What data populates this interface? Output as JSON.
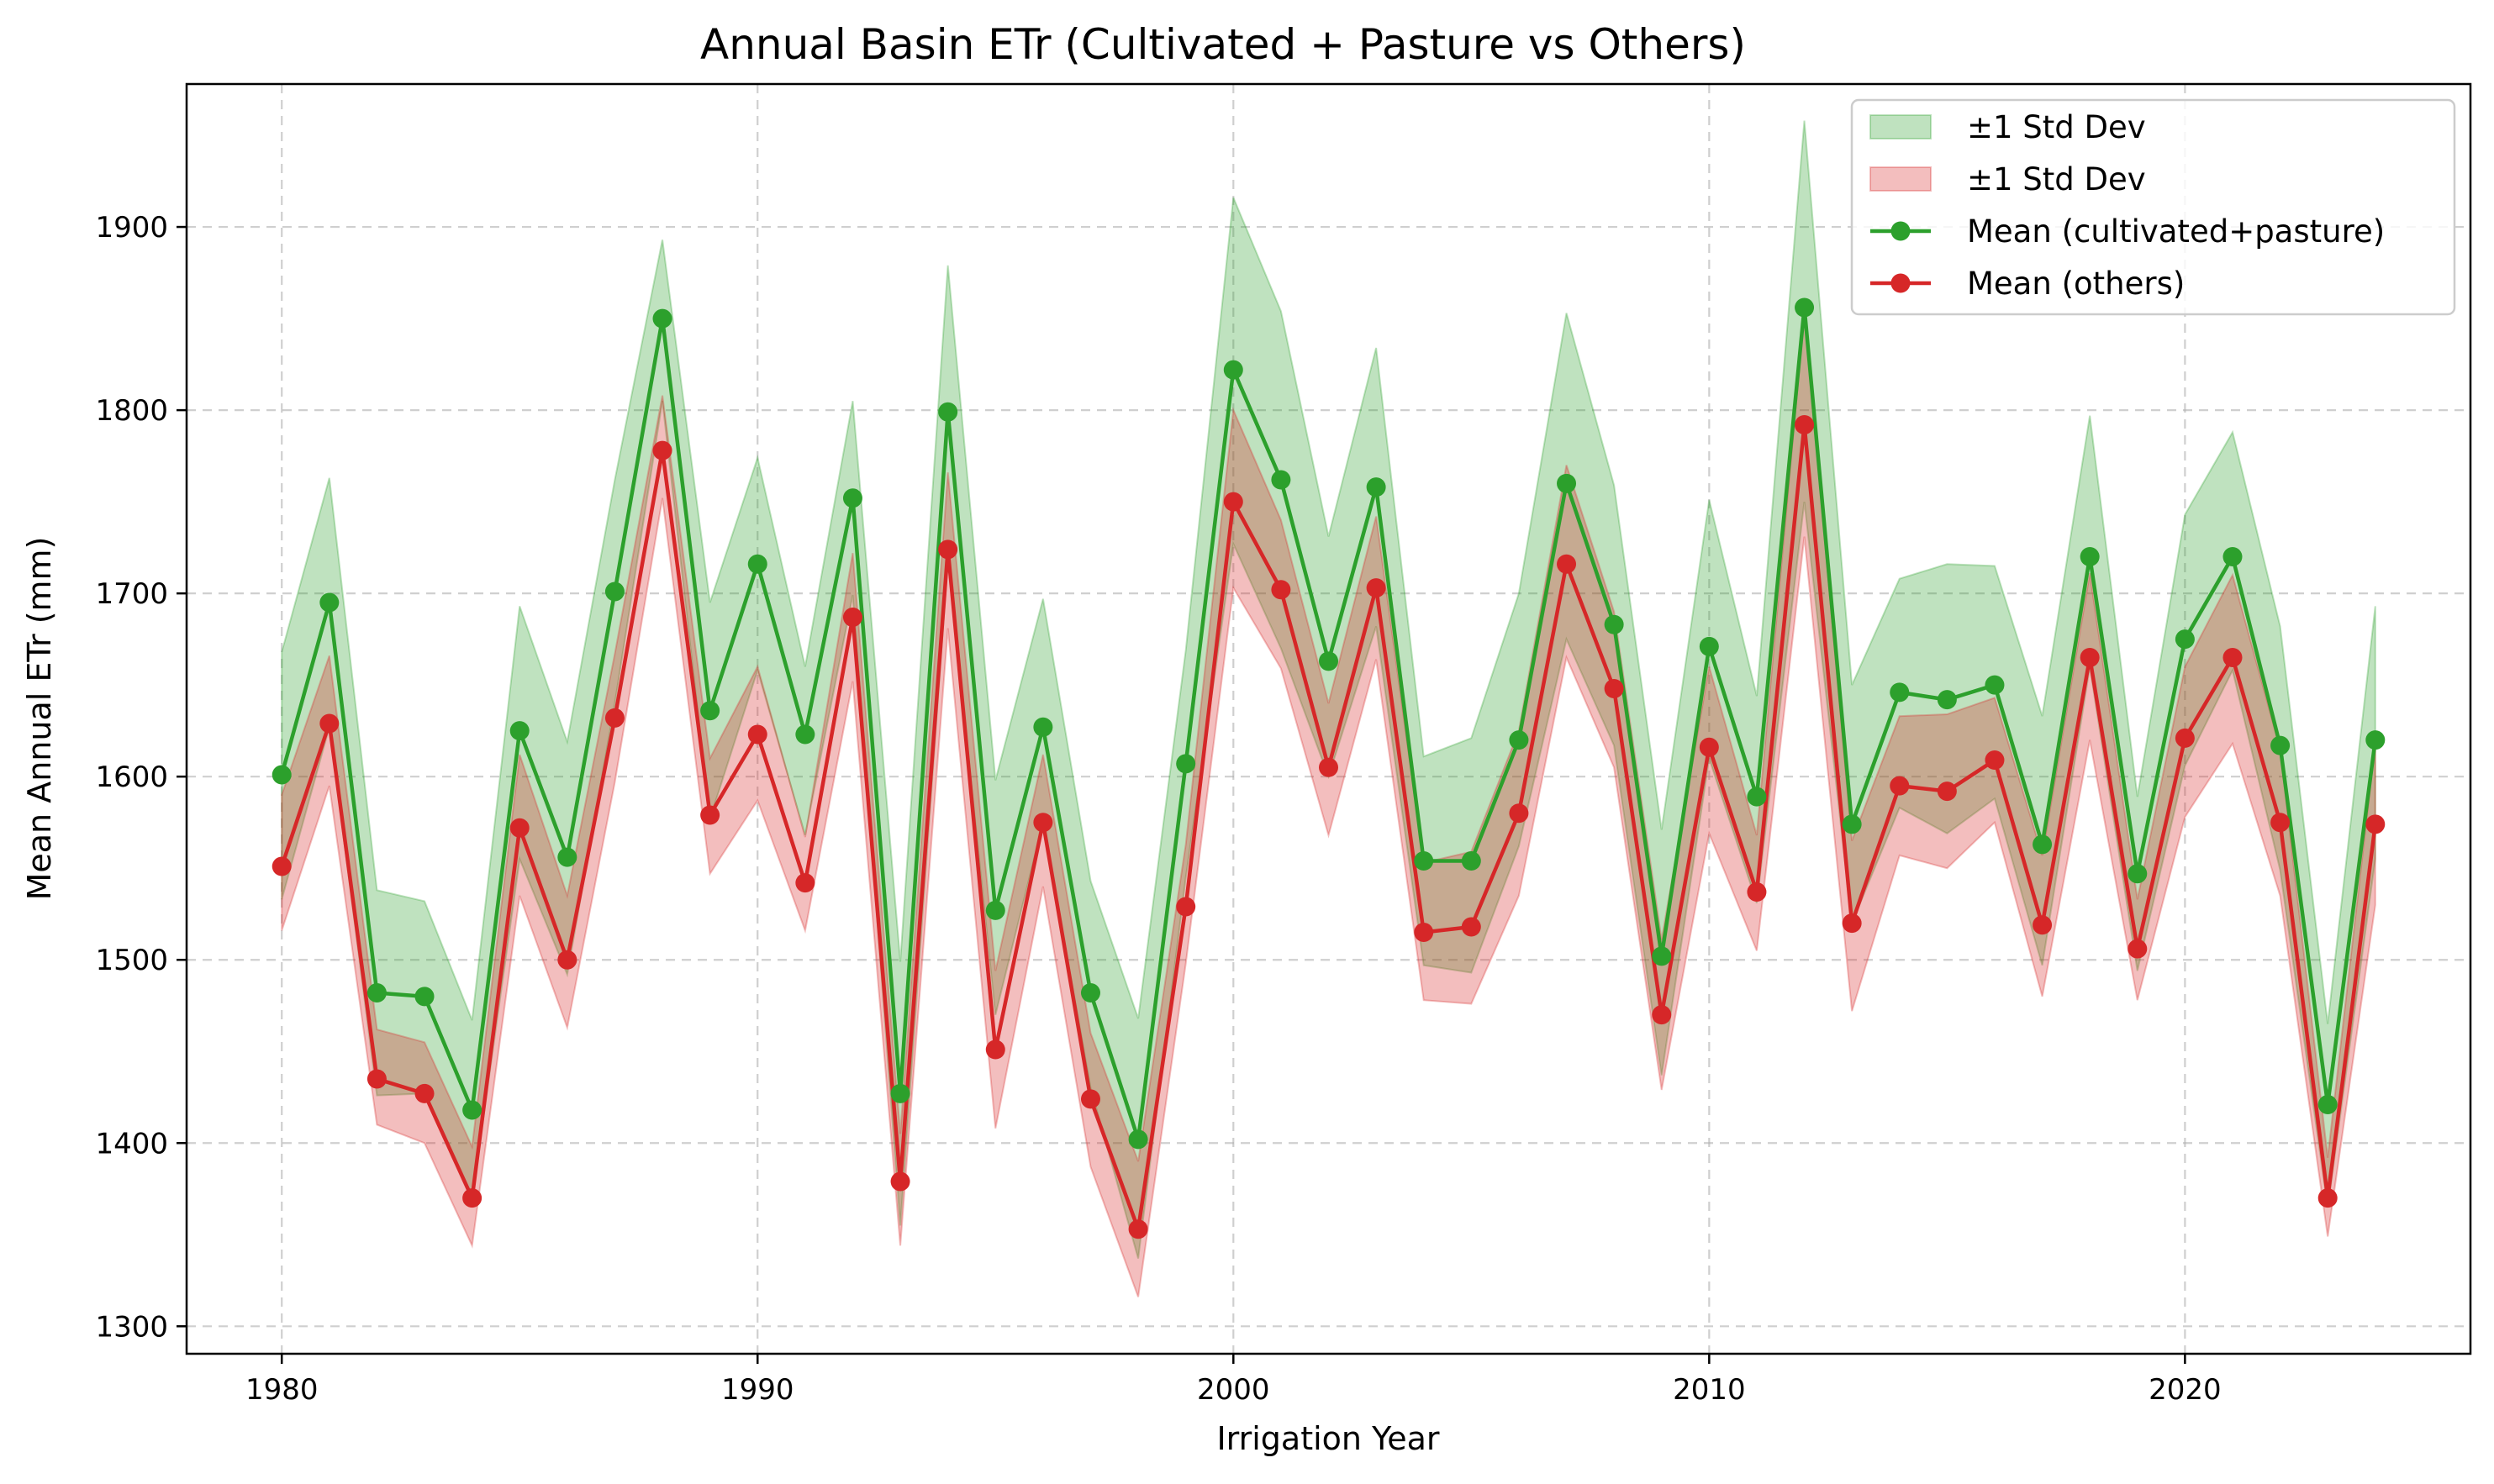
{
  "chart_data": {
    "type": "line",
    "title": "Annual Basin ETr (Cultivated + Pasture vs Others)",
    "xlabel": "Irrigation Year",
    "ylabel": "Mean Annual ETr (mm)",
    "xlim": [
      1978,
      2026
    ],
    "ylim": [
      1285,
      1978
    ],
    "xticks": [
      1980,
      1990,
      2000,
      2010,
      2020
    ],
    "yticks": [
      1300,
      1400,
      1500,
      1600,
      1700,
      1800,
      1900
    ],
    "grid": true,
    "legend_position": "top-right",
    "x": [
      1980,
      1981,
      1982,
      1983,
      1984,
      1985,
      1986,
      1987,
      1988,
      1989,
      1990,
      1991,
      1992,
      1993,
      1994,
      1995,
      1996,
      1997,
      1998,
      1999,
      2000,
      2001,
      2002,
      2003,
      2004,
      2005,
      2006,
      2007,
      2008,
      2009,
      2010,
      2011,
      2012,
      2013,
      2014,
      2015,
      2016,
      2017,
      2018,
      2019,
      2020,
      2021,
      2022,
      2023,
      2024
    ],
    "series": [
      {
        "name": "Mean (cultivated+pasture)",
        "band_name": "±1 Std Dev",
        "color": "#2ca02c",
        "band_color": "#2ca02c",
        "values": [
          1601,
          1695,
          1482,
          1480,
          1418,
          1625,
          1556,
          1701,
          1850,
          1636,
          1716,
          1623,
          1752,
          1427,
          1799,
          1527,
          1627,
          1482,
          1402,
          1607,
          1822,
          1762,
          1663,
          1758,
          1554,
          1554,
          1620,
          1760,
          1683,
          1502,
          1671,
          1589,
          1856,
          1574,
          1646,
          1642,
          1650,
          1563,
          1720,
          1547,
          1675,
          1720,
          1617,
          1421,
          1620
        ],
        "lower": [
          1533,
          1627,
          1426,
          1427,
          1370,
          1555,
          1492,
          1640,
          1805,
          1577,
          1658,
          1568,
          1699,
          1355,
          1718,
          1470,
          1575,
          1430,
          1337,
          1545,
          1727,
          1670,
          1600,
          1682,
          1497,
          1493,
          1562,
          1675,
          1617,
          1437,
          1610,
          1531,
          1750,
          1520,
          1583,
          1569,
          1588,
          1497,
          1660,
          1494,
          1606,
          1658,
          1549,
          1365,
          1555
        ],
        "upper": [
          1668,
          1763,
          1538,
          1532,
          1467,
          1693,
          1619,
          1762,
          1893,
          1695,
          1774,
          1660,
          1805,
          1499,
          1879,
          1598,
          1697,
          1543,
          1468,
          1669,
          1916,
          1854,
          1731,
          1834,
          1611,
          1621,
          1700,
          1853,
          1759,
          1571,
          1751,
          1644,
          1958,
          1650,
          1708,
          1716,
          1715,
          1633,
          1797,
          1589,
          1743,
          1788,
          1682,
          1465,
          1693
        ]
      },
      {
        "name": "Mean (others)",
        "band_name": "±1 Std Dev",
        "color": "#d62728",
        "band_color": "#d62728",
        "values": [
          1551,
          1629,
          1435,
          1427,
          1370,
          1572,
          1500,
          1632,
          1778,
          1579,
          1623,
          1542,
          1687,
          1379,
          1724,
          1451,
          1575,
          1424,
          1353,
          1529,
          1750,
          1702,
          1605,
          1703,
          1515,
          1518,
          1580,
          1716,
          1648,
          1470,
          1616,
          1537,
          1792,
          1520,
          1595,
          1592,
          1609,
          1519,
          1665,
          1506,
          1621,
          1665,
          1575,
          1370,
          1574
        ],
        "lower": [
          1516,
          1595,
          1410,
          1400,
          1344,
          1535,
          1463,
          1597,
          1752,
          1547,
          1587,
          1516,
          1652,
          1344,
          1681,
          1408,
          1540,
          1387,
          1316,
          1498,
          1703,
          1659,
          1568,
          1664,
          1478,
          1476,
          1535,
          1665,
          1605,
          1429,
          1569,
          1505,
          1731,
          1472,
          1557,
          1550,
          1575,
          1480,
          1620,
          1478,
          1578,
          1618,
          1535,
          1349,
          1530
        ],
        "upper": [
          1590,
          1666,
          1462,
          1455,
          1398,
          1612,
          1535,
          1667,
          1808,
          1610,
          1660,
          1567,
          1722,
          1405,
          1766,
          1494,
          1612,
          1460,
          1390,
          1563,
          1800,
          1740,
          1640,
          1742,
          1553,
          1559,
          1625,
          1770,
          1690,
          1511,
          1660,
          1568,
          1853,
          1565,
          1633,
          1634,
          1643,
          1557,
          1711,
          1533,
          1660,
          1710,
          1615,
          1392,
          1618
        ]
      }
    ]
  }
}
